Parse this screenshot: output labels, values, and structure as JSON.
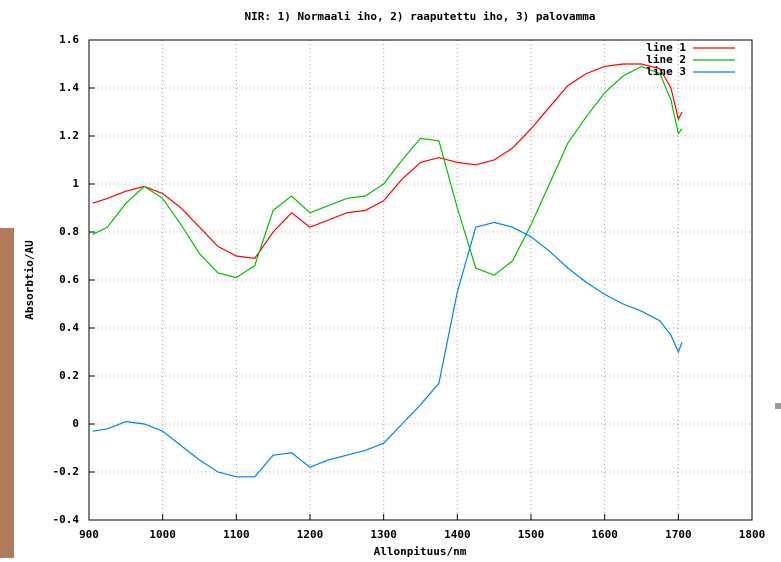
{
  "chart_data": {
    "type": "line",
    "title": "NIR: 1) Normaali iho, 2) raaputettu iho, 3) palovamma",
    "x_label": "Allonpituus/nm",
    "y_label": "Absorbtio/AU",
    "x": [
      905,
      925,
      950,
      975,
      1000,
      1025,
      1050,
      1075,
      1100,
      1125,
      1150,
      1175,
      1200,
      1225,
      1250,
      1275,
      1300,
      1325,
      1350,
      1375,
      1400,
      1425,
      1450,
      1475,
      1500,
      1525,
      1550,
      1575,
      1600,
      1625,
      1650,
      1675,
      1690,
      1700,
      1705
    ],
    "series": [
      {
        "name": "line 1",
        "color": "#ff0000",
        "values": [
          0.92,
          0.94,
          0.97,
          0.99,
          0.96,
          0.9,
          0.82,
          0.74,
          0.7,
          0.69,
          0.8,
          0.88,
          0.82,
          0.85,
          0.88,
          0.89,
          0.93,
          1.02,
          1.09,
          1.11,
          1.09,
          1.08,
          1.1,
          1.15,
          1.23,
          1.32,
          1.41,
          1.46,
          1.49,
          1.5,
          1.5,
          1.48,
          1.4,
          1.27,
          1.3
        ]
      },
      {
        "name": "line 2",
        "color": "#00c000",
        "values": [
          0.79,
          0.82,
          0.92,
          0.99,
          0.94,
          0.83,
          0.71,
          0.63,
          0.61,
          0.66,
          0.89,
          0.95,
          0.88,
          0.91,
          0.94,
          0.95,
          1.0,
          1.1,
          1.19,
          1.18,
          0.9,
          0.65,
          0.62,
          0.68,
          0.83,
          1.0,
          1.17,
          1.28,
          1.38,
          1.45,
          1.49,
          1.46,
          1.35,
          1.21,
          1.23
        ]
      },
      {
        "name": "line 3",
        "color": "#0080ff",
        "values": [
          -0.03,
          -0.02,
          0.01,
          0.0,
          -0.03,
          -0.09,
          -0.15,
          -0.2,
          -0.22,
          -0.22,
          -0.13,
          -0.12,
          -0.18,
          -0.15,
          -0.13,
          -0.11,
          -0.08,
          0.0,
          0.08,
          0.17,
          0.55,
          0.82,
          0.84,
          0.82,
          0.78,
          0.72,
          0.65,
          0.59,
          0.54,
          0.5,
          0.47,
          0.43,
          0.37,
          0.3,
          0.34
        ]
      }
    ],
    "xlim": [
      900,
      1800
    ],
    "xticks": [
      900,
      1000,
      1100,
      1200,
      1300,
      1400,
      1500,
      1600,
      1700,
      1800
    ],
    "ylim": [
      -0.4,
      1.6
    ],
    "yticks": [
      -0.4,
      -0.2,
      0,
      0.2,
      0.4,
      0.6,
      0.8,
      1,
      1.2,
      1.4,
      1.6
    ],
    "grid": true,
    "legend": "top-right"
  }
}
